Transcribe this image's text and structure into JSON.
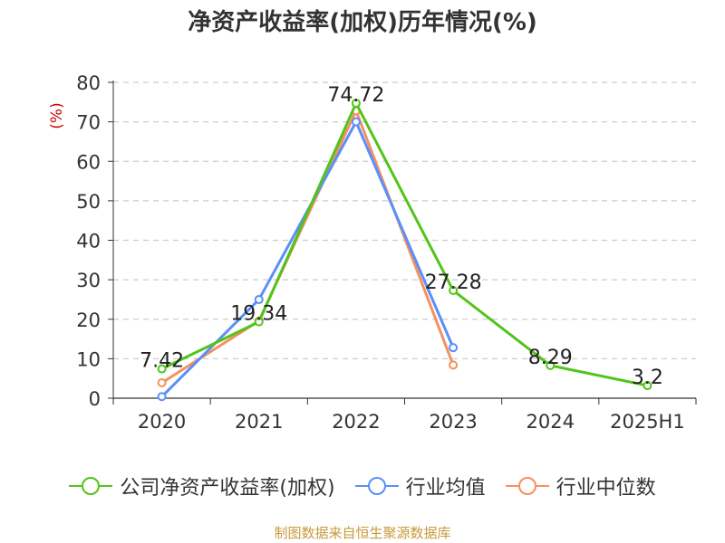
{
  "page": {
    "title": "净资产收益率(加权)历年情况(%)",
    "source": "制图数据来自恒生聚源数据库"
  },
  "chart_data": {
    "type": "line",
    "title": "净资产收益率(加权)历年情况(%)",
    "ylabel": "(%)",
    "xlabel": "",
    "categories": [
      "2020",
      "2021",
      "2022",
      "2023",
      "2024",
      "2025H1"
    ],
    "ylim": [
      0,
      80
    ],
    "yticks": [
      0,
      10,
      20,
      30,
      40,
      50,
      60,
      70,
      80
    ],
    "grid": true,
    "legend_position": "bottom",
    "series": [
      {
        "name": "公司净资产收益率(加权)",
        "color": "#52c41a",
        "values": [
          7.42,
          19.34,
          74.72,
          27.28,
          8.29,
          3.2
        ],
        "labels": true
      },
      {
        "name": "行业均值",
        "color": "#5b8ff9",
        "values": [
          0.4,
          25.0,
          70.0,
          12.8,
          null,
          null
        ],
        "labels": false
      },
      {
        "name": "行业中位数",
        "color": "#f6905e",
        "values": [
          3.9,
          19.6,
          72.8,
          8.4,
          null,
          null
        ],
        "labels": false
      }
    ]
  }
}
